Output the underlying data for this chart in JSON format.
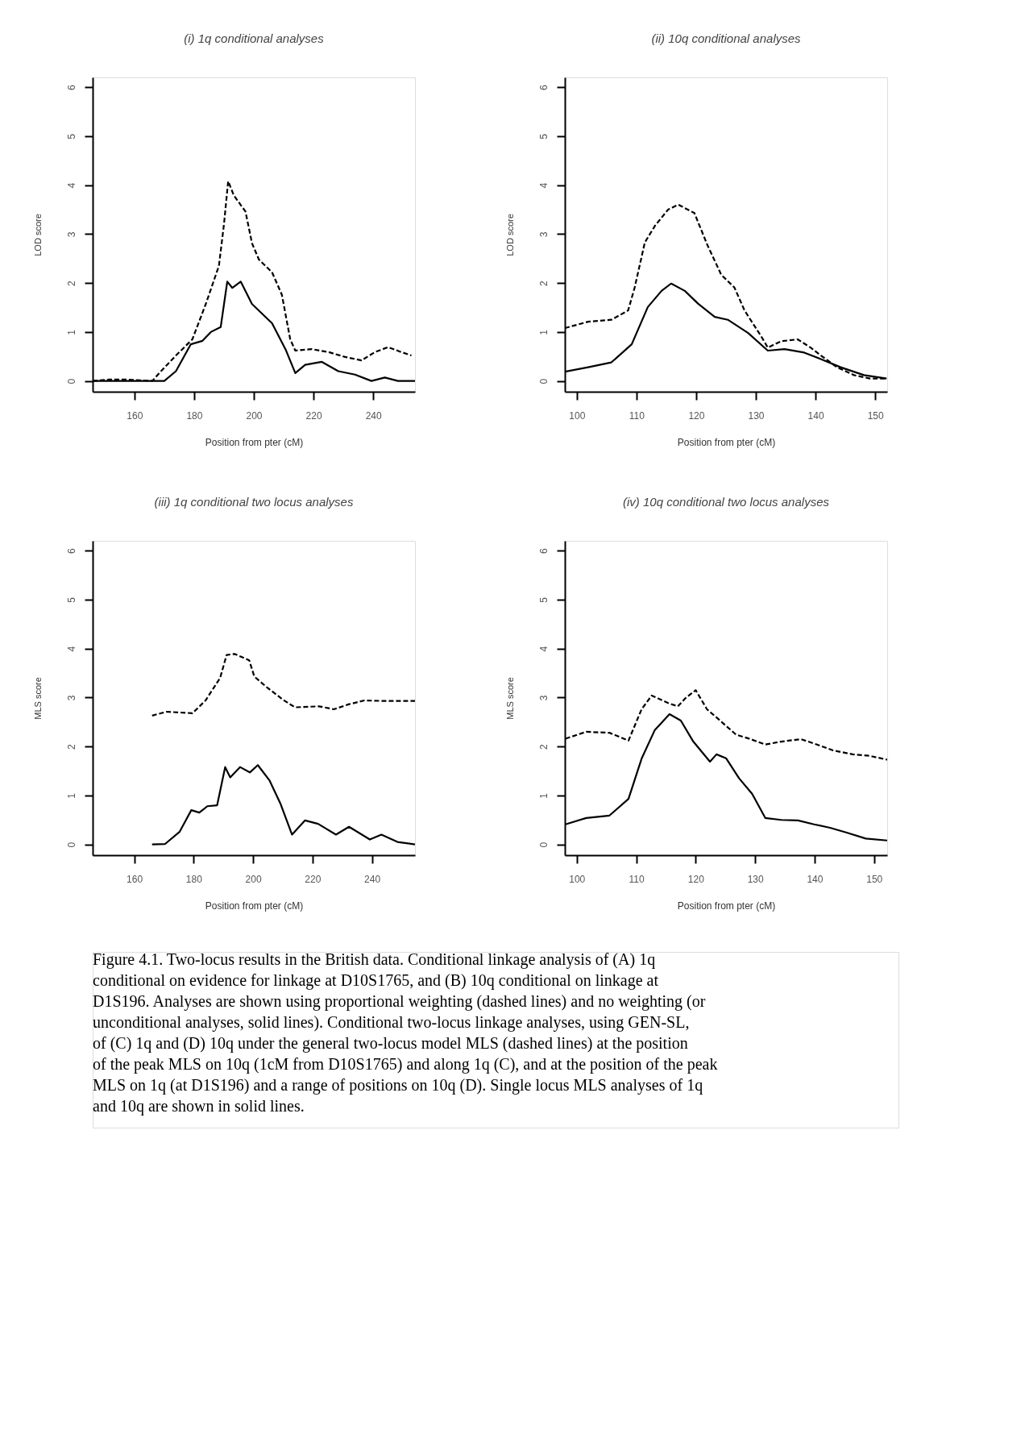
{
  "chart_data": [
    {
      "type": "line",
      "title": "(i) 1q conditional analyses",
      "xlabel": "Position from pter (cM)",
      "ylabel": "LOD score",
      "xlim": [
        146,
        254
      ],
      "xticks": [
        160,
        180,
        200,
        220,
        240
      ],
      "ylim": [
        -0.22,
        6.2
      ],
      "yticks": [
        0,
        1,
        2,
        3,
        4,
        5,
        6
      ],
      "grid": false,
      "series": [
        {
          "color": "#000000",
          "line_style": "dashed",
          "x": [
            146,
            151.5,
            157,
            166,
            168.3,
            173.9,
            179.4,
            183.9,
            188.3,
            190,
            191.4,
            193.3,
            197.2,
            199.4,
            201.7,
            206.1,
            209.4,
            212.2,
            213.9,
            219.4,
            225,
            230.6,
            236.1,
            240.6,
            245,
            249.4,
            252.8
          ],
          "values": [
            0,
            0.03,
            0.03,
            0,
            0.16,
            0.52,
            0.85,
            1.57,
            2.35,
            3.2,
            4.08,
            3.79,
            3.46,
            2.81,
            2.48,
            2.22,
            1.76,
            0.85,
            0.62,
            0.65,
            0.59,
            0.49,
            0.42,
            0.59,
            0.69,
            0.59,
            0.52
          ]
        },
        {
          "color": "#000000",
          "line_style": "solid",
          "x": [
            146,
            170,
            173.9,
            178.9,
            182.8,
            185.6,
            188.9,
            191.1,
            192.8,
            195.6,
            199.4,
            206.1,
            210.6,
            213.9,
            217.2,
            222.8,
            228.3,
            233.9,
            239.4,
            243.9,
            248.3,
            254
          ],
          "values": [
            0,
            0,
            0.2,
            0.75,
            0.82,
            1.0,
            1.1,
            2.03,
            1.9,
            2.03,
            1.57,
            1.18,
            0.65,
            0.16,
            0.33,
            0.39,
            0.2,
            0.13,
            0,
            0.07,
            0,
            0
          ]
        }
      ]
    },
    {
      "type": "line",
      "title": "(ii) 10q conditional analyses",
      "xlabel": "Position from pter (cM)",
      "ylabel": "LOD score",
      "xlim": [
        98,
        152
      ],
      "xticks": [
        100,
        110,
        120,
        130,
        140,
        150
      ],
      "ylim": [
        -0.22,
        6.2
      ],
      "yticks": [
        0,
        1,
        2,
        3,
        4,
        5,
        6
      ],
      "grid": false,
      "series": [
        {
          "color": "#000000",
          "line_style": "dashed",
          "x": [
            98,
            101.9,
            105.8,
            108.6,
            109.7,
            111.4,
            113.1,
            115.3,
            117,
            119.7,
            121.9,
            124.2,
            126.4,
            128.1,
            130.9,
            132,
            134.2,
            137,
            139.2,
            140.9,
            143.6,
            146.4,
            149.1,
            151.9
          ],
          "values": [
            1.08,
            1.21,
            1.25,
            1.44,
            1.91,
            2.83,
            3.17,
            3.5,
            3.6,
            3.43,
            2.77,
            2.17,
            1.91,
            1.44,
            0.91,
            0.68,
            0.81,
            0.85,
            0.68,
            0.52,
            0.28,
            0.12,
            0.05,
            0.05
          ]
        },
        {
          "color": "#000000",
          "line_style": "solid",
          "x": [
            98,
            101.9,
            105.8,
            109.2,
            111.9,
            114.2,
            115.8,
            118.1,
            120.3,
            123.1,
            125.3,
            128.7,
            132,
            134.8,
            138.1,
            140.8,
            144.2,
            148.1,
            151.9
          ],
          "values": [
            0.19,
            0.28,
            0.38,
            0.75,
            1.51,
            1.84,
            1.99,
            1.84,
            1.58,
            1.31,
            1.25,
            0.98,
            0.62,
            0.65,
            0.58,
            0.45,
            0.28,
            0.12,
            0.05
          ]
        }
      ]
    },
    {
      "type": "line",
      "title": "(iii) 1q conditional two locus analyses",
      "xlabel": "Position from pter (cM)",
      "ylabel": "MLS score",
      "xlim": [
        146,
        254.5
      ],
      "xticks": [
        160,
        180,
        200,
        220,
        240
      ],
      "ylim": [
        -0.22,
        6.2
      ],
      "yticks": [
        0,
        1,
        2,
        3,
        4,
        5,
        6
      ],
      "grid": false,
      "series": [
        {
          "color": "#000000",
          "line_style": "dashed",
          "x": [
            166,
            170.9,
            179.6,
            184,
            188.9,
            191.1,
            193.8,
            198.7,
            200.4,
            204.8,
            210.2,
            214.1,
            222.2,
            227.2,
            232.1,
            237.5,
            244.1,
            254.5
          ],
          "values": [
            2.63,
            2.71,
            2.68,
            2.94,
            3.4,
            3.87,
            3.89,
            3.76,
            3.43,
            3.2,
            2.95,
            2.8,
            2.82,
            2.76,
            2.86,
            2.94,
            2.93,
            2.93
          ]
        },
        {
          "color": "#000000",
          "line_style": "solid",
          "x": [
            166,
            170.4,
            175.3,
            179.2,
            181.9,
            184.6,
            187.9,
            190.6,
            192.3,
            195.6,
            198.9,
            201.6,
            205.5,
            209.3,
            213.1,
            217.5,
            221.9,
            227.9,
            232.3,
            239.3,
            243.2,
            248.6,
            254.5
          ],
          "values": [
            0,
            0.01,
            0.26,
            0.7,
            0.65,
            0.78,
            0.8,
            1.58,
            1.37,
            1.58,
            1.47,
            1.62,
            1.31,
            0.82,
            0.2,
            0.49,
            0.42,
            0.2,
            0.36,
            0.1,
            0.2,
            0.05,
            0
          ]
        }
      ]
    },
    {
      "type": "line",
      "title": "(iv) 10q conditional two locus analyses",
      "xlabel": "Position from pter (cM)",
      "ylabel": "MLS score",
      "xlim": [
        98,
        152.2
      ],
      "xticks": [
        100,
        110,
        120,
        130,
        140,
        150
      ],
      "ylim": [
        -0.22,
        6.2
      ],
      "yticks": [
        0,
        1,
        2,
        3,
        4,
        5,
        6
      ],
      "grid": false,
      "annotations": [
        "Figure 4.1. Two-locus results in the British data. Conditional linkage analysis of (A) 1q conditional on evidence for linkage at D10S1765, and (B) 10q conditional on linkage at D1S196.  Analyses are shown using proportional weighting (dashed lines) and no weighting (or unconditional analyses, solid lines). Conditional two-locus linkage analyses, using GEN-SL, of (C) 1q and (D) 10q under the general two-locus model MLS (dashed lines) at the position of the peak MLS on 10q (1cM from D10S1765) and along 1q (C), and at the position of the peak MLS on 1q (at D1S196) and a range of positions on 10q (D).  Single locus MLS analyses of 1q and 10q are shown in solid lines."
      ],
      "series": [
        {
          "color": "#000000",
          "line_style": "dashed",
          "x": [
            98.1,
            101.6,
            105.5,
            108.7,
            110.9,
            112.6,
            115.3,
            117,
            118.3,
            120,
            121.9,
            124.1,
            126.8,
            129,
            131.7,
            134.4,
            137.7,
            140.4,
            143.1,
            146.4,
            149.2,
            152.2
          ],
          "values": [
            2.16,
            2.3,
            2.28,
            2.12,
            2.76,
            3.04,
            2.89,
            2.82,
            2.99,
            3.15,
            2.76,
            2.53,
            2.24,
            2.16,
            2.04,
            2.1,
            2.15,
            2.04,
            1.92,
            1.84,
            1.81,
            1.73
          ]
        },
        {
          "color": "#000000",
          "line_style": "solid",
          "x": [
            98.1,
            101.6,
            105.5,
            108.7,
            110.9,
            113.1,
            115.6,
            117.5,
            119.6,
            122.4,
            123.5,
            125.1,
            127.3,
            129.5,
            131.7,
            134.4,
            137.2,
            139.9,
            142.6,
            145.4,
            148.6,
            152.2
          ],
          "values": [
            0.41,
            0.54,
            0.59,
            0.93,
            1.75,
            2.33,
            2.66,
            2.53,
            2.1,
            1.69,
            1.84,
            1.76,
            1.35,
            1.03,
            0.54,
            0.5,
            0.49,
            0.41,
            0.34,
            0.24,
            0.12,
            0.08
          ]
        }
      ]
    }
  ]
}
